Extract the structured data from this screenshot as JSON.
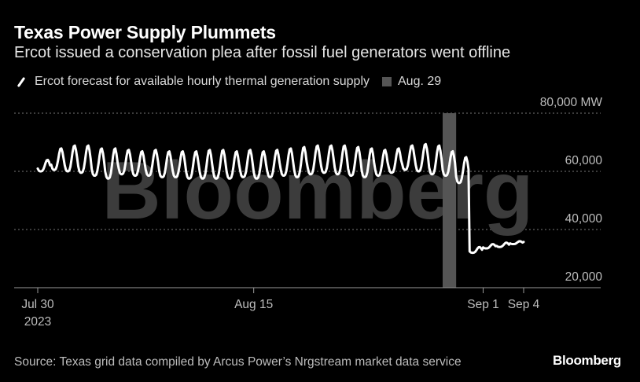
{
  "header": {
    "title": "Texas Power Supply Plummets",
    "subtitle": "Ercot issued a conservation plea after fossil fuel generators went offline"
  },
  "legend": {
    "series_label": "Ercot forecast for available hourly thermal generation supply",
    "highlight_label": "Aug. 29"
  },
  "footer": {
    "source": "Source: Texas grid data compiled by Arcus Power’s Nrgstream market data service",
    "brand": "Bloomberg"
  },
  "watermark": "Bloomberg",
  "colors": {
    "background": "#000000",
    "line": "#ffffff",
    "highlight_band": "#555555",
    "grid": "#777777",
    "text_muted": "#bdbdbd"
  },
  "chart_data": {
    "type": "line",
    "title": "Texas Power Supply Plummets",
    "subtitle": "Ercot issued a conservation plea after fossil fuel generators went offline",
    "ylim": [
      20000,
      80000
    ],
    "y_ticks": [
      20000,
      40000,
      60000,
      80000
    ],
    "y_tick_labels": [
      "20,000",
      "40,000",
      "60,000",
      "80,000 MW"
    ],
    "y_unit": "MW",
    "x_start": "2023-07-30",
    "x_end": "2023-09-04",
    "x_ticks": [
      {
        "date": "2023-07-30",
        "label": "Jul 30",
        "sublabel": "2023"
      },
      {
        "date": "2023-08-15",
        "label": "Aug 15",
        "sublabel": ""
      },
      {
        "date": "2023-09-01",
        "label": "Sep 1",
        "sublabel": ""
      },
      {
        "date": "2023-09-04",
        "label": "Sep 4",
        "sublabel": ""
      }
    ],
    "highlight": {
      "date": "2023-08-29",
      "label": "Aug. 29"
    },
    "grid": "horizontal dotted",
    "legend_position": "top-left",
    "series": [
      {
        "name": "Ercot forecast for available hourly thermal generation supply",
        "daily_min": [
          60000,
          60500,
          60000,
          59500,
          58500,
          57500,
          59000,
          58500,
          58500,
          58000,
          58000,
          57500,
          57500,
          57500,
          57500,
          58000,
          57500,
          58000,
          58500,
          58000,
          59000,
          59500,
          59000,
          58500,
          58000,
          58500,
          59500,
          60500,
          60000,
          59000,
          58500,
          56000,
          32000,
          33500,
          34000,
          35000,
          35500
        ],
        "daily_max": [
          64000,
          68000,
          69000,
          69000,
          68000,
          68000,
          67500,
          67000,
          67500,
          67000,
          67000,
          67000,
          67500,
          67500,
          67000,
          67500,
          67000,
          67500,
          68000,
          68500,
          69000,
          69000,
          69000,
          68500,
          68000,
          67500,
          68000,
          69000,
          69500,
          69000,
          67000,
          65000,
          34000,
          35000,
          35500,
          36000,
          36500
        ]
      }
    ]
  }
}
